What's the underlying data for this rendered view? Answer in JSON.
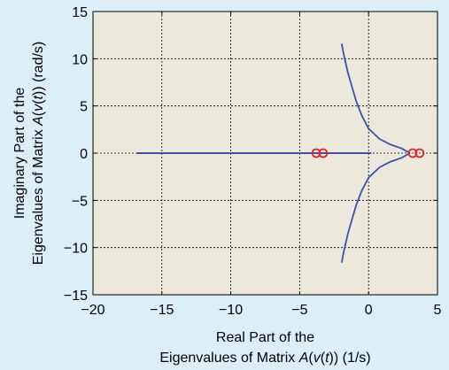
{
  "chart_data": {
    "type": "scatter",
    "xlabel_line1": "Real Part of the",
    "xlabel_line2_prefix": "Eigenvalues of Matrix ",
    "xlabel_line2_func": "A",
    "xlabel_line2_mid": "(",
    "xlabel_line2_var": "v",
    "xlabel_line2_mid2": "(",
    "xlabel_line2_t": "t",
    "xlabel_line2_suffix": ")) (1/s)",
    "ylabel_line1": "Imaginary Part of the",
    "ylabel_line2_prefix": "Eigenvalues of Matrix ",
    "ylabel_line2_func": "A",
    "ylabel_line2_mid": "(",
    "ylabel_line2_var": "v",
    "ylabel_line2_mid2": "(",
    "ylabel_line2_t": "t",
    "ylabel_line2_suffix": ")) (rad/s)",
    "xlim": [
      -20,
      5
    ],
    "ylim": [
      -15,
      15
    ],
    "xticks": [
      -20,
      -15,
      -10,
      -5,
      0,
      5
    ],
    "yticks": [
      -15,
      -10,
      -5,
      0,
      5,
      10,
      15
    ],
    "xtick_labels": [
      "−20",
      "−15",
      "−10",
      "−5",
      "0",
      "5"
    ],
    "ytick_labels": [
      "−15",
      "−10",
      "−5",
      "0",
      "5",
      "10",
      "15"
    ],
    "grid": true,
    "background_color": "#dceef6",
    "plot_background": "#ede8dc",
    "series": [
      {
        "kind": "eigenvalue-locus",
        "color": "#3a52a8",
        "real_axis_segment": {
          "x": [
            -16.8,
            0.2
          ],
          "y": 0
        },
        "upper_branch": {
          "x": [
            3.0,
            2.4,
            1.6,
            0.8,
            0.0,
            -0.5,
            -0.9,
            -1.2,
            -1.5,
            -1.7,
            -1.85,
            -1.95
          ],
          "y": [
            0.0,
            0.5,
            0.9,
            1.5,
            2.6,
            4.0,
            5.5,
            7.0,
            8.5,
            9.8,
            10.8,
            11.6
          ]
        },
        "lower_branch": {
          "x": [
            3.0,
            2.4,
            1.6,
            0.8,
            0.0,
            -0.5,
            -0.9,
            -1.2,
            -1.5,
            -1.7,
            -1.85,
            -1.95
          ],
          "y": [
            0.0,
            -0.5,
            -0.9,
            -1.5,
            -2.6,
            -4.0,
            -5.5,
            -7.0,
            -8.5,
            -9.8,
            -10.8,
            -11.6
          ]
        }
      },
      {
        "kind": "markers",
        "marker": "circle",
        "color": "#e0252b",
        "x": [
          -3.8,
          -3.3,
          3.2,
          3.7
        ],
        "y": [
          0,
          0,
          0,
          0
        ]
      }
    ]
  }
}
